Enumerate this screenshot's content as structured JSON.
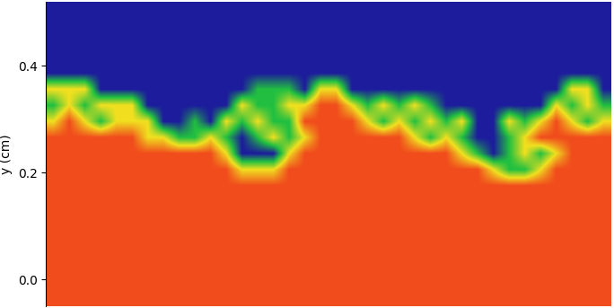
{
  "chart_data": {
    "type": "heatmap",
    "y_label": "y (cm)",
    "ylim": [
      -0.05,
      0.52
    ],
    "yticks": [
      0.0,
      0.2,
      0.4
    ],
    "tick_labels": "y",
    "colors": [
      "#1c1c9c",
      "#22c040",
      "#f0e020",
      "#f04c1c"
    ],
    "color_range": [
      0,
      1
    ],
    "cells": [
      [
        0,
        0,
        0,
        0,
        0,
        0,
        0,
        0,
        0,
        0,
        0,
        0,
        0,
        0,
        0,
        0,
        0,
        0,
        0,
        0,
        0,
        0,
        0,
        0,
        0,
        0,
        0,
        0,
        0,
        0,
        0,
        0,
        0,
        0,
        0,
        0
      ],
      [
        0,
        0,
        0,
        0,
        0,
        0,
        0,
        0,
        0,
        0,
        0,
        0,
        0,
        0,
        0,
        0,
        0,
        0,
        0,
        0,
        0,
        0,
        0,
        0,
        0,
        0,
        0,
        0,
        0,
        0,
        0,
        0,
        0,
        0,
        0,
        0
      ],
      [
        0,
        0,
        0,
        0,
        0,
        0,
        0,
        0,
        0,
        0,
        0,
        0,
        0,
        0,
        0,
        0,
        0,
        0,
        0,
        0,
        0,
        0,
        0,
        0,
        0,
        0,
        0,
        0,
        0,
        0,
        0,
        0,
        0,
        0,
        0,
        0
      ],
      [
        0,
        0,
        0,
        0,
        0,
        0,
        0,
        0,
        0,
        0,
        0,
        0,
        0,
        0,
        0,
        0,
        0,
        0,
        0,
        0,
        0,
        0,
        0,
        0,
        0,
        0,
        0,
        0,
        0,
        0,
        0,
        0,
        0,
        0,
        0,
        0
      ],
      [
        0,
        0,
        0,
        0,
        0,
        0,
        0,
        0,
        0,
        0,
        0,
        0,
        0,
        0,
        0,
        0,
        0,
        0,
        0,
        0,
        0,
        0,
        0,
        0,
        0,
        0,
        0,
        0,
        0,
        0,
        0,
        0,
        0,
        0,
        0,
        0
      ],
      [
        0.67,
        0.67,
        0.67,
        0,
        0,
        0,
        0,
        0,
        0,
        0,
        0,
        0,
        0,
        0.33,
        0.33,
        0.33,
        0,
        0.67,
        0.67,
        0,
        0,
        0,
        0,
        0,
        0,
        0,
        0,
        0,
        0,
        0,
        0,
        0,
        0,
        0.67,
        0.67,
        0
      ],
      [
        0.33,
        0.67,
        0.33,
        0.67,
        0.67,
        0.67,
        0,
        0,
        0,
        0,
        0,
        0,
        0.67,
        0.33,
        0.33,
        0.67,
        0.67,
        1,
        1,
        0.67,
        0.33,
        0.67,
        0.33,
        0.67,
        0.33,
        0,
        0,
        0,
        0,
        0,
        0,
        0,
        0.67,
        0.33,
        0.67,
        0.33
      ],
      [
        0.67,
        1,
        0.67,
        0.33,
        0.67,
        0.67,
        0.67,
        0,
        0,
        0.33,
        0,
        0.67,
        0.33,
        0.67,
        0.33,
        0.33,
        1,
        1,
        1,
        1,
        0.67,
        0.33,
        0.67,
        0.33,
        0.67,
        0.33,
        0.67,
        0,
        0,
        0.67,
        0.33,
        0.67,
        1,
        0.67,
        0.33,
        0.67
      ],
      [
        1,
        1,
        1,
        1,
        1,
        1,
        0.67,
        0.67,
        0.33,
        0.33,
        0.67,
        0.33,
        0,
        0.33,
        0.67,
        0.33,
        0.67,
        1,
        1,
        1,
        1,
        1,
        1,
        0.67,
        0.33,
        0.67,
        0.33,
        0,
        0,
        0.33,
        0.67,
        1,
        1,
        1,
        1,
        1
      ],
      [
        1,
        1,
        1,
        1,
        1,
        1,
        1,
        1,
        1,
        1,
        1,
        0.67,
        0,
        0,
        0,
        0.67,
        1,
        1,
        1,
        1,
        1,
        1,
        1,
        1,
        1,
        1,
        0.67,
        0.33,
        0,
        0.33,
        0.67,
        0.33,
        0.67,
        1,
        1,
        1
      ],
      [
        1,
        1,
        1,
        1,
        1,
        1,
        1,
        1,
        1,
        1,
        1,
        1,
        0.67,
        0.67,
        0.67,
        1,
        1,
        1,
        1,
        1,
        1,
        1,
        1,
        1,
        1,
        1,
        1,
        1,
        0.67,
        0.33,
        0.33,
        0.67,
        1,
        1,
        1,
        1
      ],
      [
        1,
        1,
        1,
        1,
        1,
        1,
        1,
        1,
        1,
        1,
        1,
        1,
        1,
        1,
        1,
        1,
        1,
        1,
        1,
        1,
        1,
        1,
        1,
        1,
        1,
        1,
        1,
        1,
        1,
        1,
        1,
        1,
        1,
        1,
        1,
        1
      ],
      [
        1,
        1,
        1,
        1,
        1,
        1,
        1,
        1,
        1,
        1,
        1,
        1,
        1,
        1,
        1,
        1,
        1,
        1,
        1,
        1,
        1,
        1,
        1,
        1,
        1,
        1,
        1,
        1,
        1,
        1,
        1,
        1,
        1,
        1,
        1,
        1
      ],
      [
        1,
        1,
        1,
        1,
        1,
        1,
        1,
        1,
        1,
        1,
        1,
        1,
        1,
        1,
        1,
        1,
        1,
        1,
        1,
        1,
        1,
        1,
        1,
        1,
        1,
        1,
        1,
        1,
        1,
        1,
        1,
        1,
        1,
        1,
        1,
        1
      ],
      [
        1,
        1,
        1,
        1,
        1,
        1,
        1,
        1,
        1,
        1,
        1,
        1,
        1,
        1,
        1,
        1,
        1,
        1,
        1,
        1,
        1,
        1,
        1,
        1,
        1,
        1,
        1,
        1,
        1,
        1,
        1,
        1,
        1,
        1,
        1,
        1
      ],
      [
        1,
        1,
        1,
        1,
        1,
        1,
        1,
        1,
        1,
        1,
        1,
        1,
        1,
        1,
        1,
        1,
        1,
        1,
        1,
        1,
        1,
        1,
        1,
        1,
        1,
        1,
        1,
        1,
        1,
        1,
        1,
        1,
        1,
        1,
        1,
        1
      ],
      [
        1,
        1,
        1,
        1,
        1,
        1,
        1,
        1,
        1,
        1,
        1,
        1,
        1,
        1,
        1,
        1,
        1,
        1,
        1,
        1,
        1,
        1,
        1,
        1,
        1,
        1,
        1,
        1,
        1,
        1,
        1,
        1,
        1,
        1,
        1,
        1
      ],
      [
        1,
        1,
        1,
        1,
        1,
        1,
        1,
        1,
        1,
        1,
        1,
        1,
        1,
        1,
        1,
        1,
        1,
        1,
        1,
        1,
        1,
        1,
        1,
        1,
        1,
        1,
        1,
        1,
        1,
        1,
        1,
        1,
        1,
        1,
        1,
        1
      ],
      [
        1,
        1,
        1,
        1,
        1,
        1,
        1,
        1,
        1,
        1,
        1,
        1,
        1,
        1,
        1,
        1,
        1,
        1,
        1,
        1,
        1,
        1,
        1,
        1,
        1,
        1,
        1,
        1,
        1,
        1,
        1,
        1,
        1,
        1,
        1,
        1
      ]
    ]
  }
}
